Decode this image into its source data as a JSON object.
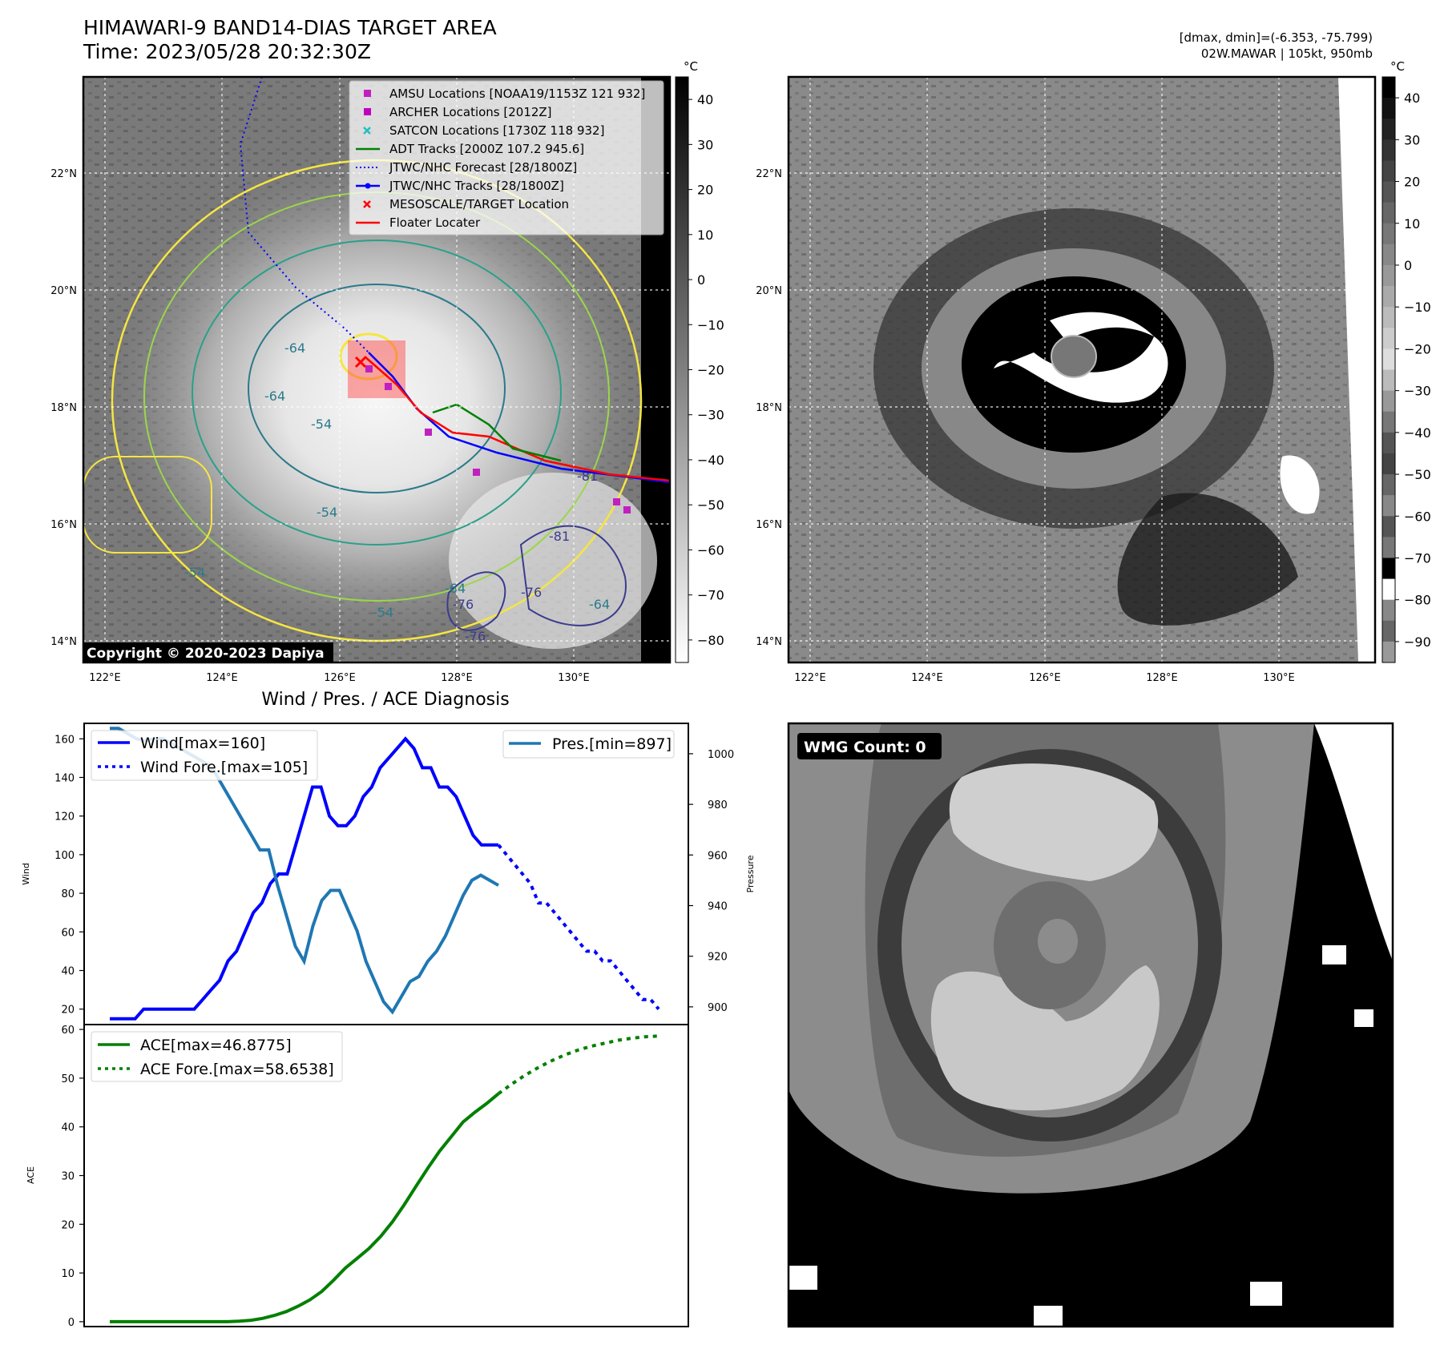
{
  "header": {
    "title_line1": "HIMAWARI-9 BAND14-DIAS TARGET AREA",
    "title_line2": "Time: 2023/05/28 20:32:30Z",
    "right_line1": "[dmax, dmin]=(-6.353, -75.799)",
    "right_line2": "02W.MAWAR | 105kt, 950mb"
  },
  "map_left": {
    "legend": [
      {
        "label": "AMSU Locations [NOAA19/1153Z 121 932]",
        "marker": "square",
        "color": "#c020c0"
      },
      {
        "label": "ARCHER Locations [2012Z]",
        "marker": "square",
        "color": "#c000c0"
      },
      {
        "label": "SATCON Locations [1730Z 118 932]",
        "marker": "x",
        "color": "#20c0c0"
      },
      {
        "label": "ADT Tracks [2000Z 107.2 945.6]",
        "marker": "line",
        "color": "#008000"
      },
      {
        "label": "JTWC/NHC Forecast [28/1800Z]",
        "marker": "dotted",
        "color": "#0000ff"
      },
      {
        "label": "JTWC/NHC Tracks [28/1800Z]",
        "marker": "line-dot",
        "color": "#0000ff"
      },
      {
        "label": "MESOSCALE/TARGET Location",
        "marker": "x",
        "color": "#ff0000"
      },
      {
        "label": "Floater Locater",
        "marker": "line",
        "color": "#ff0000"
      }
    ],
    "copyright": "Copyright © 2020-2023 Dapiya",
    "contour_labels": [
      "-54",
      "-64",
      "-76",
      "-81",
      "-64",
      "-54",
      "-76",
      "-64",
      "-54",
      "-81",
      "-64",
      "-54",
      "-76"
    ],
    "colorbar_unit": "°C",
    "colorbar_ticks": [
      "40",
      "30",
      "20",
      "10",
      "0",
      "−10",
      "−20",
      "−30",
      "−40",
      "−50",
      "−60",
      "−70",
      "−80"
    ]
  },
  "map_right": {
    "colorbar_unit": "°C",
    "colorbar_ticks": [
      "40",
      "30",
      "20",
      "10",
      "0",
      "−10",
      "−20",
      "−30",
      "−40",
      "−50",
      "−60",
      "−70",
      "−80",
      "−90"
    ]
  },
  "map_axes": {
    "lon_labels": [
      "122°E",
      "124°E",
      "126°E",
      "128°E",
      "130°E"
    ],
    "lat_labels": [
      "22°N",
      "20°N",
      "18°N",
      "16°N",
      "14°N"
    ]
  },
  "chart_data": [
    {
      "type": "line",
      "title": "Wind / Pres. / ACE Diagnosis",
      "ylabel": "Wind",
      "ylabel_right": "Pressure",
      "ylim": [
        12,
        168
      ],
      "ylim_right": [
        893,
        1012
      ],
      "yticks": [
        "160",
        "140",
        "120",
        "100",
        "80",
        "60",
        "40",
        "20"
      ],
      "yticks_right": [
        "1000",
        "980",
        "960",
        "940",
        "920",
        "900"
      ],
      "series": [
        {
          "name": "Wind[max=160]",
          "axis": "left",
          "style": "solid",
          "color": "#0000ff",
          "values": [
            15,
            15,
            15,
            15,
            20,
            20,
            20,
            20,
            20,
            20,
            20,
            25,
            30,
            35,
            45,
            50,
            60,
            70,
            75,
            85,
            90,
            90,
            105,
            120,
            135,
            135,
            120,
            115,
            115,
            120,
            130,
            135,
            145,
            150,
            155,
            160,
            155,
            145,
            145,
            135,
            135,
            130,
            120,
            110,
            105,
            105,
            105
          ]
        },
        {
          "name": "Wind Fore.[max=105]",
          "axis": "left",
          "style": "dotted",
          "color": "#0000ff",
          "values": [
            105,
            100,
            95,
            90,
            85,
            75,
            75,
            70,
            65,
            60,
            55,
            50,
            50,
            45,
            45,
            40,
            35,
            30,
            25,
            25,
            20
          ]
        },
        {
          "name": "Pres.[min=897]",
          "axis": "right",
          "style": "solid",
          "color": "#1f77b4",
          "values": [
            1010,
            1010,
            1008,
            1006,
            1005,
            1006,
            1006,
            1004,
            1002,
            1000,
            998,
            996,
            992,
            986,
            980,
            974,
            968,
            962,
            962,
            948,
            936,
            924,
            918,
            932,
            942,
            946,
            946,
            938,
            930,
            918,
            910,
            902,
            898,
            904,
            910,
            912,
            918,
            922,
            928,
            936,
            944,
            950,
            952,
            950,
            948
          ]
        }
      ]
    },
    {
      "type": "line",
      "ylabel": "ACE",
      "ylim": [
        -1,
        61
      ],
      "yticks": [
        "60",
        "50",
        "40",
        "30",
        "20",
        "10",
        "0"
      ],
      "series": [
        {
          "name": "ACE[max=46.8775]",
          "style": "solid",
          "color": "#008000",
          "values": [
            0,
            0,
            0,
            0,
            0,
            0,
            0,
            0,
            0,
            0,
            0,
            0.1,
            0.3,
            0.7,
            1.3,
            2.1,
            3.2,
            4.5,
            6.2,
            8.5,
            11,
            13,
            15,
            17.5,
            20.5,
            24,
            27.8,
            31.5,
            35,
            38,
            41,
            43,
            44.8,
            46.8
          ]
        },
        {
          "name": "ACE Fore.[max=58.6538]",
          "style": "dotted",
          "color": "#008000",
          "values": [
            46.8,
            48.8,
            50.6,
            52.2,
            53.6,
            54.8,
            55.8,
            56.6,
            57.2,
            57.8,
            58.2,
            58.5,
            58.65
          ]
        }
      ]
    }
  ],
  "wmg_panel": {
    "label": "WMG Count: 0"
  }
}
